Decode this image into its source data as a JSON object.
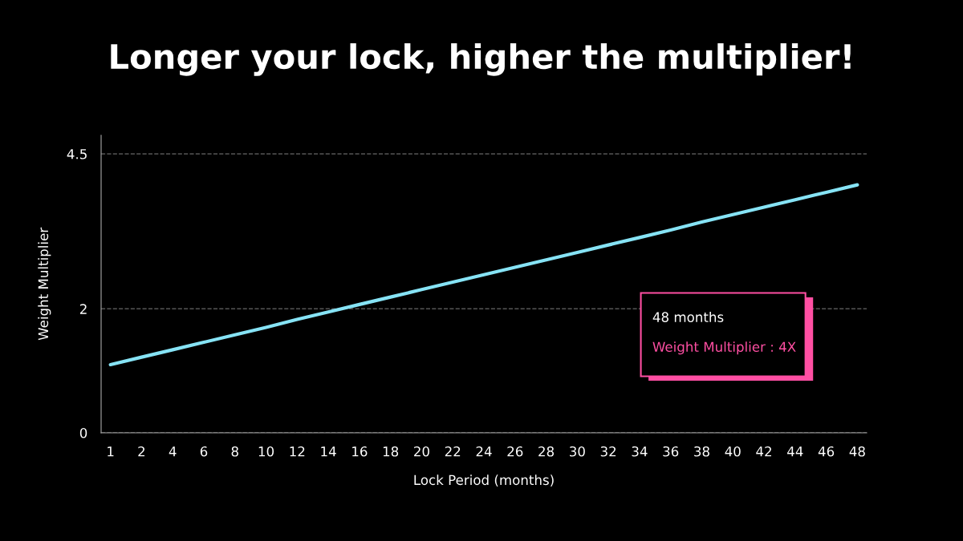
{
  "chart_data": {
    "type": "line",
    "title": "Longer your lock, higher the multiplier!",
    "xlabel": "Lock Period (months)",
    "ylabel": "Weight Multiplier",
    "categories": [
      "1",
      "2",
      "4",
      "6",
      "8",
      "10",
      "12",
      "14",
      "16",
      "18",
      "20",
      "22",
      "24",
      "26",
      "28",
      "30",
      "32",
      "34",
      "36",
      "38",
      "40",
      "42",
      "44",
      "46",
      "48"
    ],
    "series": [
      {
        "color": "#86e3f5",
        "values": [
          1.1,
          1.22,
          1.34,
          1.46,
          1.58,
          1.7,
          1.83,
          1.95,
          2.07,
          2.19,
          2.31,
          2.43,
          2.55,
          2.67,
          2.79,
          2.91,
          3.03,
          3.15,
          3.27,
          3.4,
          3.52,
          3.64,
          3.76,
          3.88,
          4.0
        ]
      }
    ],
    "ylim": [
      0,
      4.8
    ],
    "yticks": [
      0,
      2,
      4.5
    ],
    "grid": "y",
    "legend": false,
    "marker": "none",
    "line_style": "solid",
    "annotations": [
      "48 months",
      "Weight Multiplier : 4X"
    ]
  }
}
